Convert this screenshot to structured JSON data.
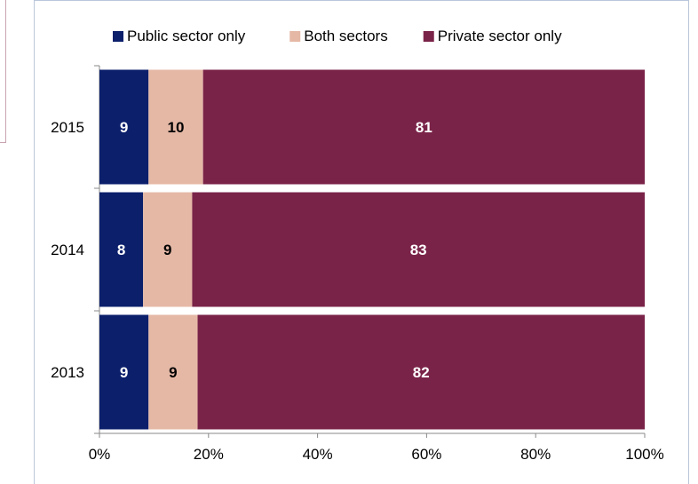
{
  "chart_data": {
    "type": "bar",
    "orientation": "horizontal",
    "stacked": true,
    "categories": [
      "2015",
      "2014",
      "2013"
    ],
    "series": [
      {
        "name": "Public sector only",
        "values": [
          9,
          8,
          9
        ],
        "color": "#0b1f6b",
        "label_color": "#ffffff"
      },
      {
        "name": "Both sectors",
        "values": [
          10,
          9,
          9
        ],
        "color": "#e5b8a6",
        "label_color": "#000000"
      },
      {
        "name": "Private sector only",
        "values": [
          81,
          83,
          82
        ],
        "color": "#7a2348",
        "label_color": "#ffffff"
      }
    ],
    "xlim": [
      0,
      100
    ],
    "x_ticks": [
      "0%",
      "20%",
      "40%",
      "60%",
      "80%",
      "100%"
    ],
    "legend_position": "top",
    "grid": false
  }
}
